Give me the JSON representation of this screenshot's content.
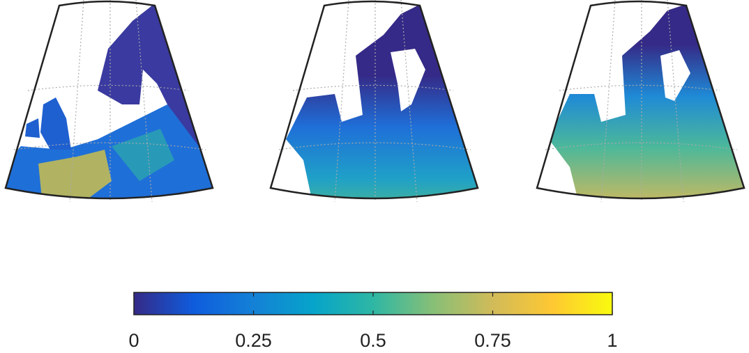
{
  "colorbar": {
    "lim": [
      0,
      1
    ],
    "ticks": [
      0,
      0.25,
      0.5,
      0.75,
      1
    ],
    "colors": [
      "#352a87",
      "#0f5cdd",
      "#1481d6",
      "#06a4ca",
      "#2eb7a4",
      "#87bf77",
      "#d1bb59",
      "#fec832",
      "#f9fb0e"
    ]
  }
}
